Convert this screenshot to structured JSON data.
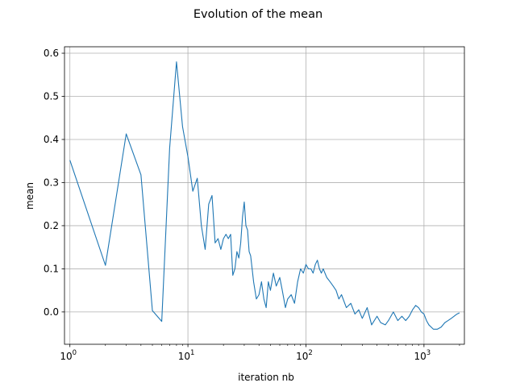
{
  "chart_data": {
    "type": "line",
    "title": "Evolution of the mean",
    "xlabel": "iteration nb",
    "ylabel": "mean",
    "xscale": "log",
    "xlim": [
      0.9,
      2200
    ],
    "ylim": [
      -0.075,
      0.615
    ],
    "grid": true,
    "line_color": "#1f77b4",
    "yticks": [
      0.0,
      0.1,
      0.2,
      0.3,
      0.4,
      0.5,
      0.6
    ],
    "ytick_labels": [
      "0.0",
      "0.1",
      "0.2",
      "0.3",
      "0.4",
      "0.5",
      "0.6"
    ],
    "xticks": [
      {
        "value": 1,
        "base": "10",
        "exp": "0"
      },
      {
        "value": 10,
        "base": "10",
        "exp": "1"
      },
      {
        "value": 100,
        "base": "10",
        "exp": "2"
      },
      {
        "value": 1000,
        "base": "10",
        "exp": "3"
      }
    ],
    "series": [
      {
        "x": [
          1,
          2,
          3,
          4,
          5,
          6,
          7,
          8,
          9,
          10,
          11,
          12,
          13,
          14,
          15,
          16,
          17,
          18,
          19,
          20,
          21,
          22,
          23,
          24,
          25,
          26,
          27,
          28,
          29,
          30,
          31,
          32,
          33,
          34,
          35,
          36,
          38,
          40,
          42,
          44,
          46,
          48,
          50,
          53,
          56,
          60,
          63,
          67,
          70,
          75,
          80,
          85,
          90,
          95,
          100,
          105,
          110,
          115,
          120,
          125,
          130,
          135,
          140,
          150,
          160,
          170,
          180,
          190,
          200,
          220,
          240,
          260,
          280,
          300,
          330,
          360,
          400,
          430,
          470,
          500,
          550,
          600,
          650,
          700,
          750,
          800,
          850,
          900,
          950,
          1000,
          1050,
          1100,
          1200,
          1300,
          1400,
          1500,
          1600,
          1700,
          1800,
          1900,
          2000
        ],
        "y": [
          0.352,
          0.108,
          0.413,
          0.318,
          0.003,
          -0.022,
          0.38,
          0.58,
          0.43,
          0.36,
          0.28,
          0.31,
          0.2,
          0.145,
          0.25,
          0.27,
          0.16,
          0.17,
          0.145,
          0.17,
          0.18,
          0.17,
          0.18,
          0.085,
          0.1,
          0.14,
          0.125,
          0.16,
          0.22,
          0.255,
          0.2,
          0.19,
          0.14,
          0.13,
          0.1,
          0.07,
          0.03,
          0.04,
          0.07,
          0.03,
          0.01,
          0.07,
          0.05,
          0.09,
          0.06,
          0.08,
          0.05,
          0.01,
          0.03,
          0.04,
          0.02,
          0.07,
          0.1,
          0.09,
          0.11,
          0.1,
          0.1,
          0.09,
          0.11,
          0.12,
          0.1,
          0.09,
          0.1,
          0.08,
          0.07,
          0.06,
          0.05,
          0.03,
          0.04,
          0.01,
          0.02,
          -0.005,
          0.005,
          -0.015,
          0.01,
          -0.03,
          -0.01,
          -0.025,
          -0.03,
          -0.02,
          0.0,
          -0.02,
          -0.01,
          -0.02,
          -0.01,
          0.005,
          0.015,
          0.01,
          0.0,
          -0.005,
          -0.02,
          -0.03,
          -0.04,
          -0.04,
          -0.035,
          -0.025,
          -0.02,
          -0.015,
          -0.01,
          -0.005,
          -0.002
        ]
      }
    ]
  }
}
